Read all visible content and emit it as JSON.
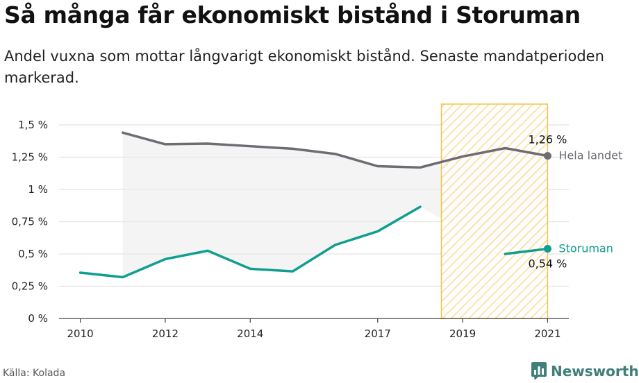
{
  "title": "Så många får ekonomiskt bistånd i Storuman",
  "subtitle": "Andel vuxna som mottar långvarigt ekonomiskt bistånd. Senaste mandatperioden markerad.",
  "source": "Källa: Kolada",
  "brand": "Newsworthy",
  "colors": {
    "hela_landet": "#6e6b73",
    "storuman": "#0f9e8f",
    "highlight": "#f6c244",
    "band": "#ebebeb",
    "grid": "#e3e3e3",
    "brand": "#3f7f79"
  },
  "chart_data": {
    "type": "line",
    "x_ticks": [
      "2010",
      "2012",
      "2014",
      "2017",
      "2019",
      "2021"
    ],
    "y_ticks": [
      "0 %",
      "0,25 %",
      "0,5 %",
      "0,75 %",
      "1 %",
      "1,25 %",
      "1,5 %"
    ],
    "ylim": [
      0,
      1.5
    ],
    "xlim": [
      2009.5,
      2021.5
    ],
    "highlight_period": [
      2018.5,
      2021
    ],
    "grid": true,
    "series": [
      {
        "name": "Hela landet",
        "end_label": "1,26 %",
        "points": [
          {
            "x": 2011,
            "y": 1.44
          },
          {
            "x": 2012,
            "y": 1.35
          },
          {
            "x": 2013,
            "y": 1.355
          },
          {
            "x": 2014,
            "y": 1.335
          },
          {
            "x": 2015,
            "y": 1.315
          },
          {
            "x": 2016,
            "y": 1.275
          },
          {
            "x": 2017,
            "y": 1.18
          },
          {
            "x": 2018,
            "y": 1.17
          },
          {
            "x": 2019,
            "y": 1.255
          },
          {
            "x": 2020,
            "y": 1.32
          },
          {
            "x": 2021,
            "y": 1.26
          }
        ]
      },
      {
        "name": "Storuman",
        "end_label": "0,54 %",
        "points": [
          {
            "x": 2010,
            "y": 0.355
          },
          {
            "x": 2011,
            "y": 0.32
          },
          {
            "x": 2012,
            "y": 0.46
          },
          {
            "x": 2013,
            "y": 0.525
          },
          {
            "x": 2014,
            "y": 0.385
          },
          {
            "x": 2015,
            "y": 0.365
          },
          {
            "x": 2016,
            "y": 0.57
          },
          {
            "x": 2017,
            "y": 0.675
          },
          {
            "x": 2018,
            "y": 0.865
          },
          {
            "x": 2020,
            "y": 0.5
          },
          {
            "x": 2021,
            "y": 0.54
          }
        ]
      }
    ]
  }
}
